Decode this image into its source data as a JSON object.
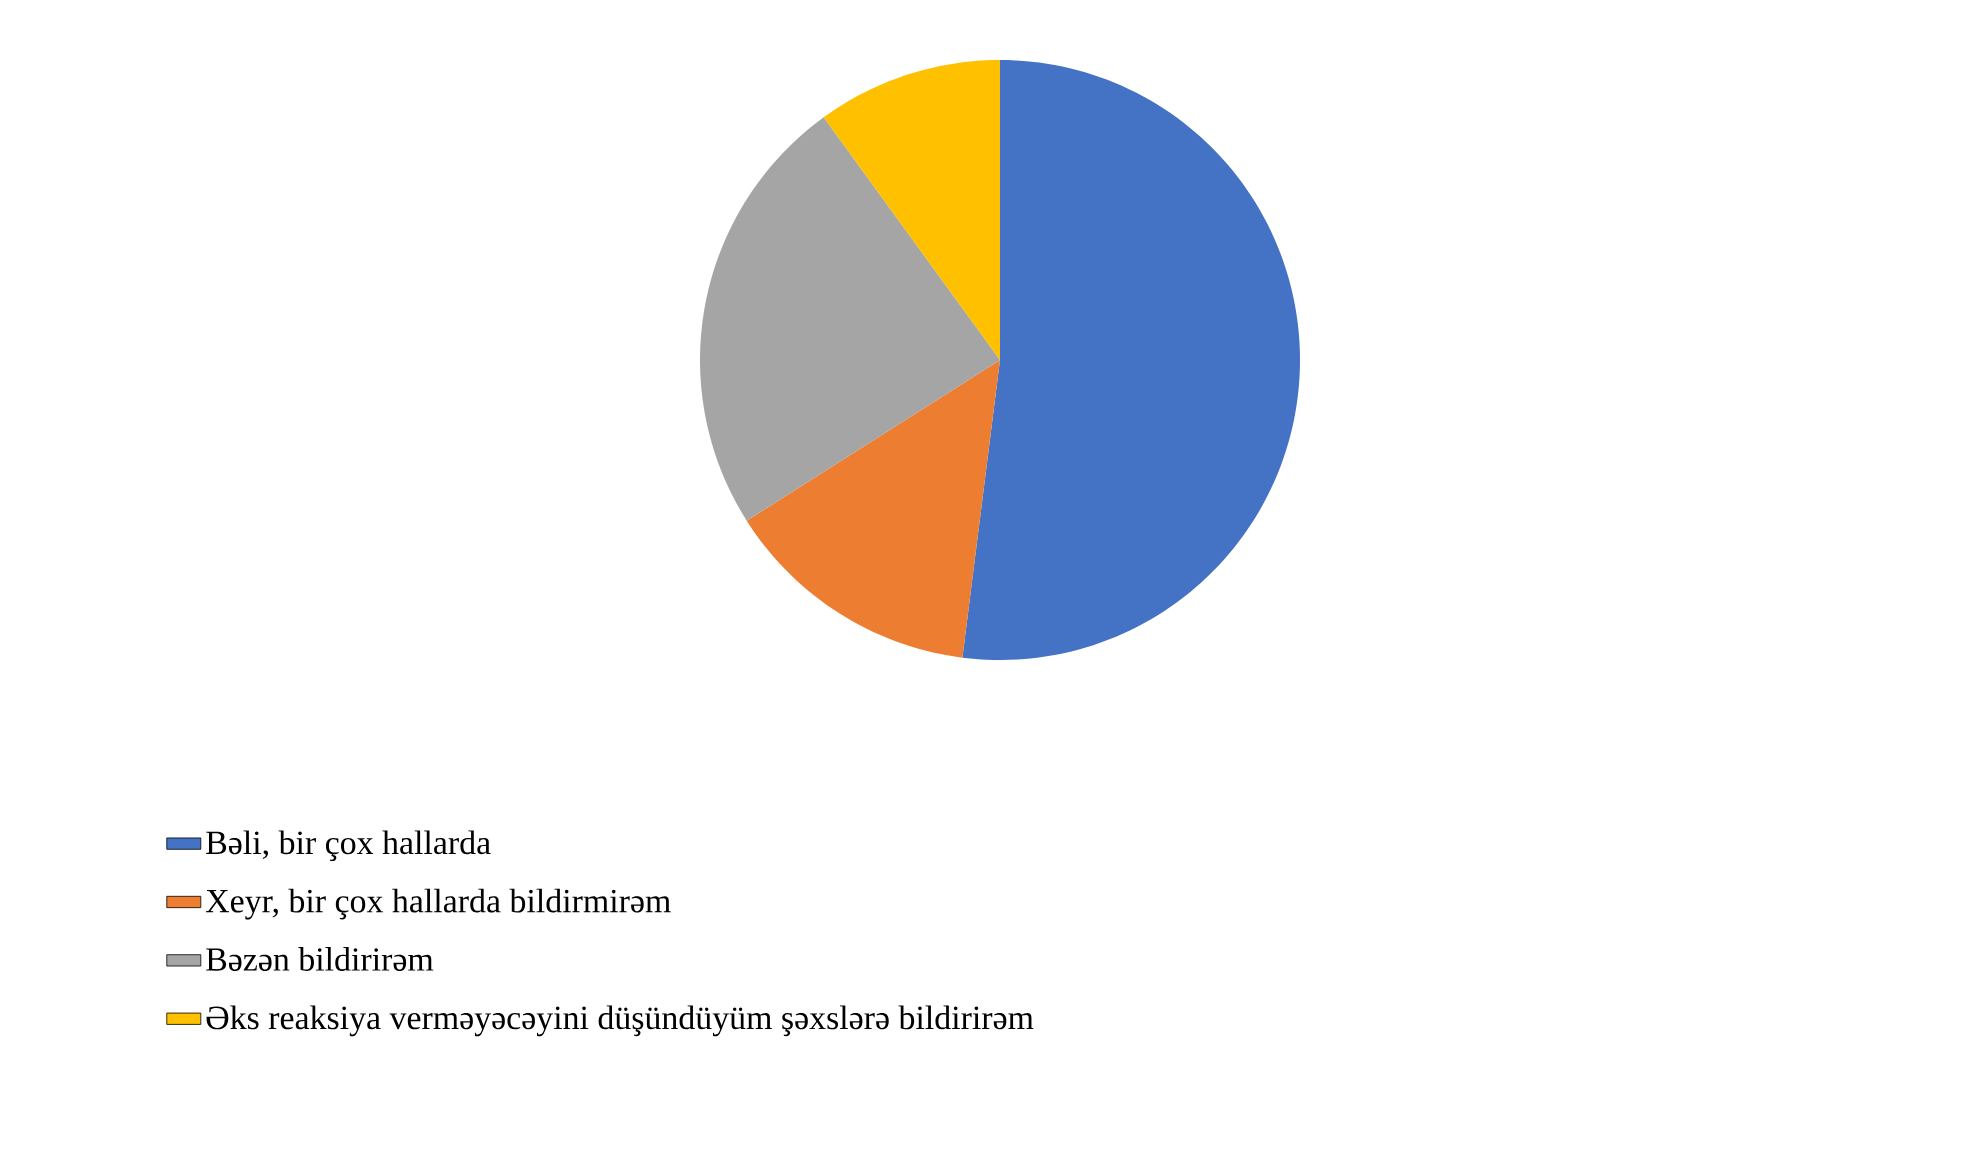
{
  "chart_data": {
    "type": "pie",
    "categories": [
      "Bəli, bir çox hallarda",
      "Xeyr, bir çox hallarda bildirmirəm",
      "Bəzən bildirirəm",
      "Əks reaksiya verməyəcəyini düşündüyüm şəxslərə bildirirəm"
    ],
    "values": [
      52,
      14,
      24,
      10
    ],
    "colors": [
      "#4472c4",
      "#ed7d31",
      "#a5a5a5",
      "#ffc000"
    ],
    "legend": "bottom"
  }
}
